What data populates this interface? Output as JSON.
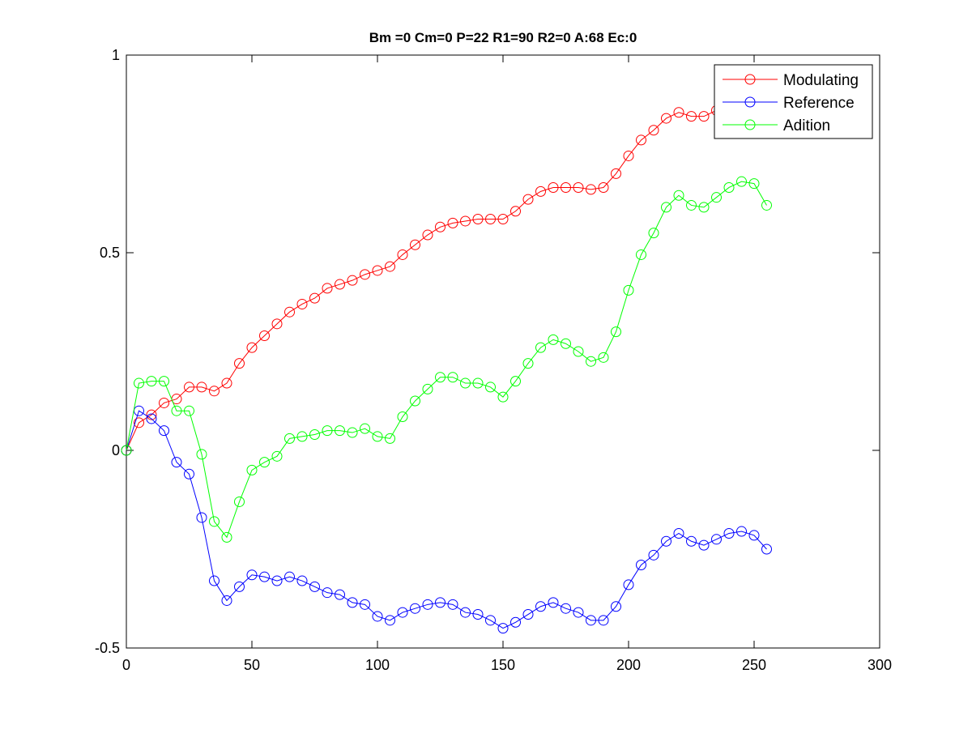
{
  "chart_data": {
    "type": "line",
    "title": "Bm =0  Cm=0  P=22  R1=90  R2=0  A:68  Ec:0",
    "xlabel": "",
    "ylabel": "",
    "xlim": [
      0,
      300
    ],
    "ylim": [
      -0.5,
      1
    ],
    "xticks": [
      0,
      50,
      100,
      150,
      200,
      250,
      300
    ],
    "xtick_labels": [
      "0",
      "50",
      "100",
      "150",
      "200",
      "250",
      "300"
    ],
    "yticks": [
      -0.5,
      0,
      0.5,
      1
    ],
    "ytick_labels": [
      "-0.5",
      "0",
      "0.5",
      "1"
    ],
    "grid": false,
    "legend_position": "top-right",
    "marker": "circle",
    "x": [
      0,
      5,
      10,
      15,
      20,
      25,
      30,
      35,
      40,
      45,
      50,
      55,
      60,
      65,
      70,
      75,
      80,
      85,
      90,
      95,
      100,
      105,
      110,
      115,
      120,
      125,
      130,
      135,
      140,
      145,
      150,
      155,
      160,
      165,
      170,
      175,
      180,
      185,
      190,
      195,
      200,
      205,
      210,
      215,
      220,
      225,
      230,
      235,
      240,
      245,
      250,
      255
    ],
    "series": [
      {
        "name": "Modulating",
        "color": "#ff0000",
        "values": [
          0,
          0.07,
          0.09,
          0.12,
          0.13,
          0.16,
          0.16,
          0.15,
          0.17,
          0.22,
          0.26,
          0.29,
          0.32,
          0.35,
          0.37,
          0.385,
          0.41,
          0.42,
          0.43,
          0.445,
          0.455,
          0.465,
          0.495,
          0.52,
          0.545,
          0.565,
          0.575,
          0.58,
          0.585,
          0.585,
          0.585,
          0.605,
          0.635,
          0.655,
          0.665,
          0.665,
          0.665,
          0.66,
          0.665,
          0.7,
          0.745,
          0.785,
          0.81,
          0.84,
          0.855,
          0.845,
          0.845,
          0.86,
          0.855,
          0.86,
          0.86,
          0.86
        ]
      },
      {
        "name": "Reference",
        "color": "#0000ff",
        "values": [
          0,
          0.1,
          0.08,
          0.05,
          -0.03,
          -0.06,
          -0.17,
          -0.33,
          -0.38,
          -0.345,
          -0.315,
          -0.32,
          -0.33,
          -0.32,
          -0.33,
          -0.345,
          -0.36,
          -0.365,
          -0.385,
          -0.39,
          -0.42,
          -0.43,
          -0.41,
          -0.4,
          -0.39,
          -0.385,
          -0.39,
          -0.41,
          -0.415,
          -0.43,
          -0.45,
          -0.435,
          -0.415,
          -0.395,
          -0.385,
          -0.4,
          -0.41,
          -0.43,
          -0.43,
          -0.395,
          -0.34,
          -0.29,
          -0.265,
          -0.23,
          -0.21,
          -0.23,
          -0.24,
          -0.225,
          -0.21,
          -0.205,
          -0.215,
          -0.25
        ]
      },
      {
        "name": "Adition",
        "color": "#00ff00",
        "values": [
          0,
          0.17,
          0.175,
          0.175,
          0.1,
          0.1,
          -0.01,
          -0.18,
          -0.22,
          -0.13,
          -0.05,
          -0.03,
          -0.015,
          0.03,
          0.035,
          0.04,
          0.05,
          0.05,
          0.045,
          0.055,
          0.035,
          0.03,
          0.085,
          0.125,
          0.155,
          0.185,
          0.185,
          0.17,
          0.17,
          0.16,
          0.135,
          0.175,
          0.22,
          0.26,
          0.28,
          0.27,
          0.25,
          0.225,
          0.235,
          0.3,
          0.405,
          0.495,
          0.55,
          0.615,
          0.645,
          0.62,
          0.615,
          0.64,
          0.665,
          0.68,
          0.675,
          0.62
        ]
      }
    ]
  }
}
